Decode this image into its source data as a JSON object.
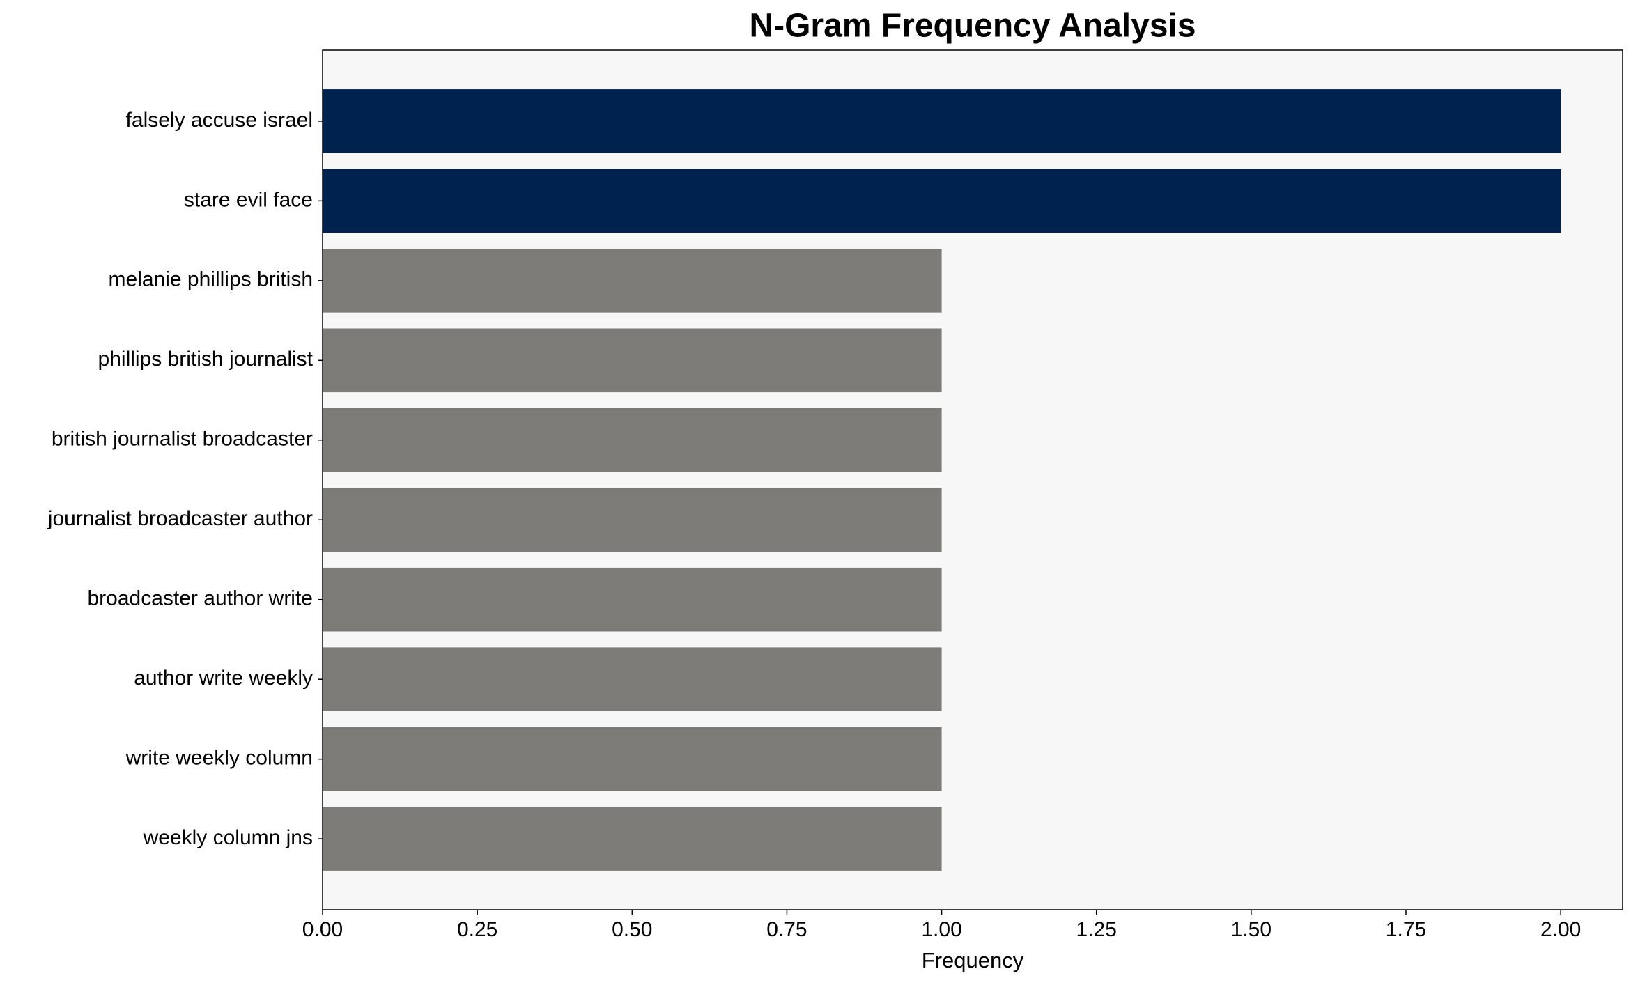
{
  "chart_data": {
    "type": "barh",
    "title": "N-Gram Frequency Analysis",
    "x_label": "Frequency",
    "categories": [
      "falsely accuse israel",
      "stare evil face",
      "melanie phillips british",
      "phillips british journalist",
      "british journalist broadcaster",
      "journalist broadcaster author",
      "broadcaster author write",
      "author write weekly",
      "write weekly column",
      "weekly column jns"
    ],
    "values": [
      2,
      2,
      1,
      1,
      1,
      1,
      1,
      1,
      1,
      1
    ],
    "colors": [
      "#00224e",
      "#00224e",
      "#7c7b78",
      "#7c7b78",
      "#7c7b78",
      "#7c7b78",
      "#7c7b78",
      "#7c7b78",
      "#7c7b78",
      "#7c7b78"
    ],
    "xlim": [
      0,
      2.1
    ],
    "xticks": [
      {
        "value": 0,
        "label": "0.00"
      },
      {
        "value": 0.25,
        "label": "0.25"
      },
      {
        "value": 0.5,
        "label": "0.50"
      },
      {
        "value": 0.75,
        "label": "0.75"
      },
      {
        "value": 1,
        "label": "1.00"
      },
      {
        "value": 1.25,
        "label": "1.25"
      },
      {
        "value": 1.5,
        "label": "1.50"
      },
      {
        "value": 1.75,
        "label": "1.75"
      },
      {
        "value": 2,
        "label": "2.00"
      }
    ],
    "background": "#f7f7f7"
  }
}
